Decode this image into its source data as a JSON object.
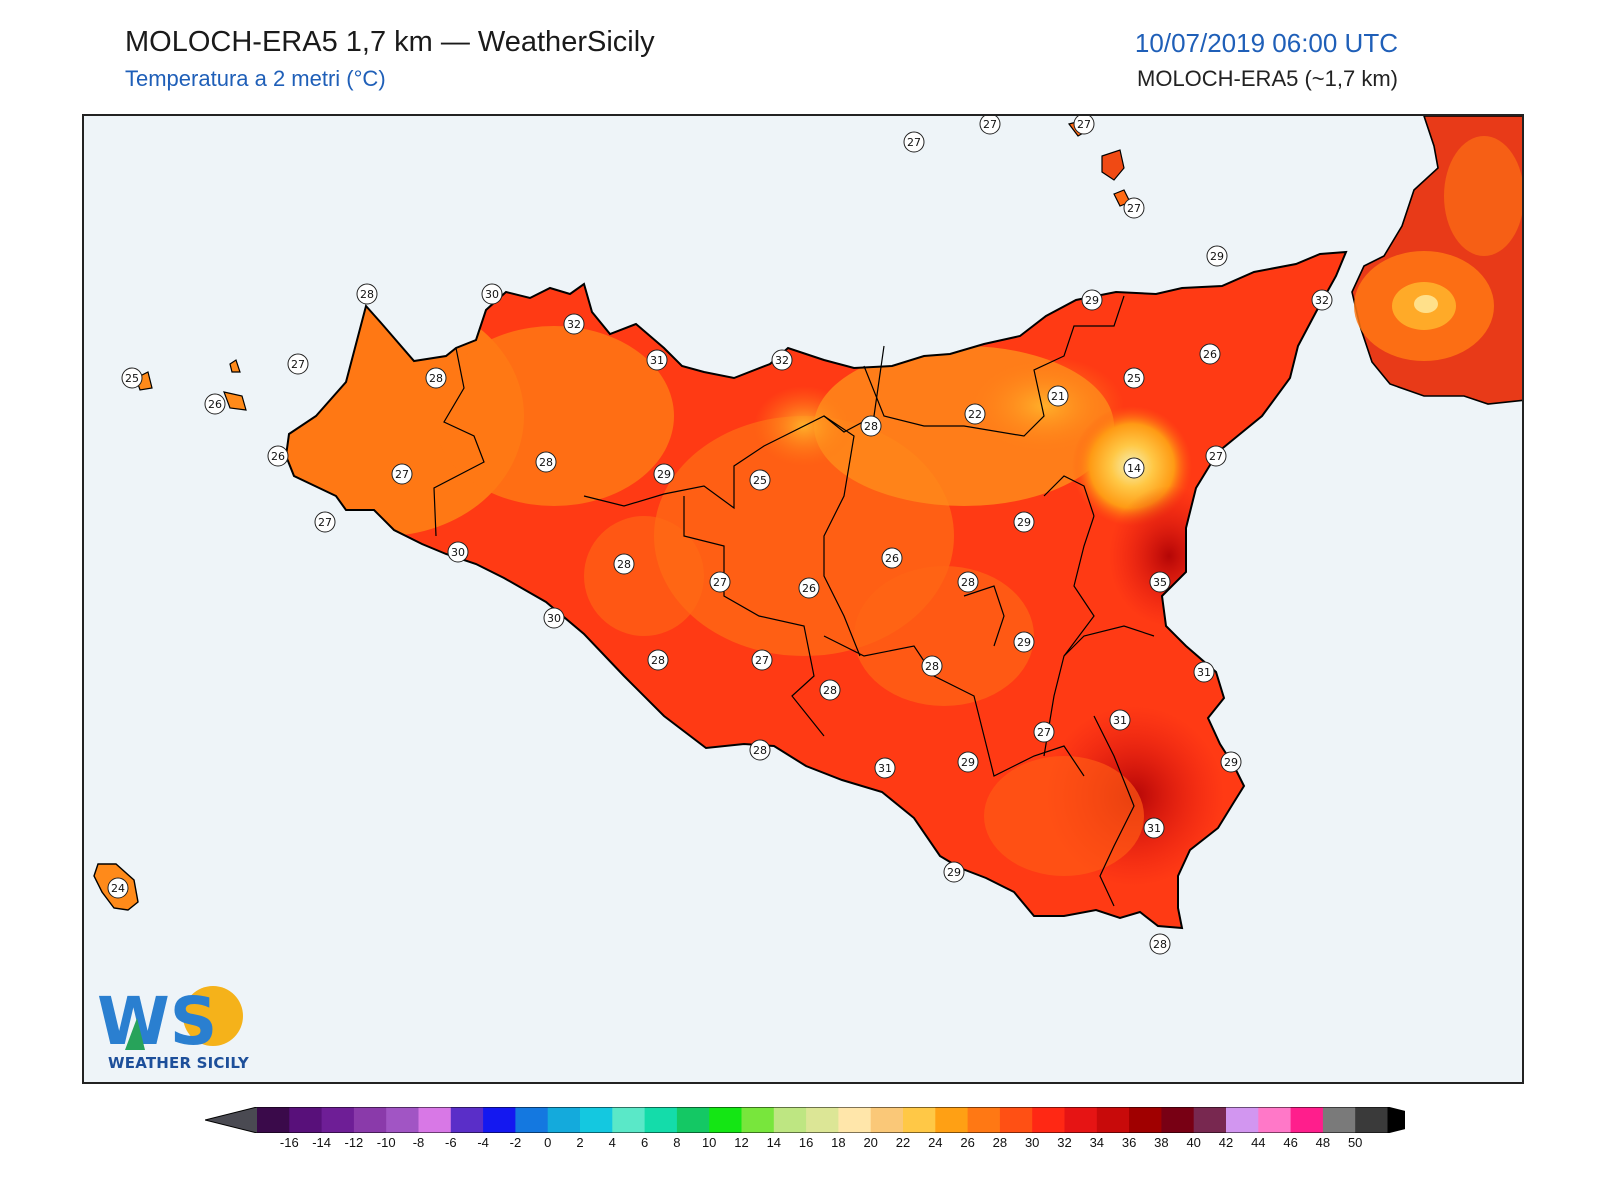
{
  "header": {
    "title": "MOLOCH-ERA5 1,7 km — WeatherSicily",
    "subtitle": "Temperatura a 2 metri (°C)",
    "datetime": "10/07/2019 06:00 UTC",
    "model": "MOLOCH-ERA5 (~1,7 km)"
  },
  "logo": {
    "letters": "WS",
    "text": "WEATHER SICILY"
  },
  "colorbar": {
    "ticks": [
      "-16",
      "-14",
      "-12",
      "-10",
      "-8",
      "-6",
      "-4",
      "-2",
      "0",
      "2",
      "4",
      "6",
      "8",
      "10",
      "12",
      "14",
      "16",
      "18",
      "20",
      "22",
      "24",
      "26",
      "28",
      "30",
      "32",
      "34",
      "36",
      "38",
      "40",
      "42",
      "44",
      "46",
      "48",
      "50"
    ],
    "colors": [
      "#3a0a4a",
      "#58107a",
      "#6e1e96",
      "#8a3aaa",
      "#a155c4",
      "#d878e6",
      "#5a2ec8",
      "#1418f0",
      "#1478e0",
      "#14aadc",
      "#14c8e0",
      "#5ae8c8",
      "#14dcaa",
      "#14c864",
      "#14e614",
      "#78e63c",
      "#bee682",
      "#dce696",
      "#ffe6aa",
      "#fac878",
      "#ffc846",
      "#ffa014",
      "#ff7814",
      "#ff5014",
      "#ff2814",
      "#e61414",
      "#c80a0a",
      "#a00000",
      "#780014",
      "#782850",
      "#d296f0",
      "#ff78c8",
      "#ff1e8c",
      "#7a7a7a",
      "#3a3a3a"
    ]
  },
  "stations": [
    {
      "v": "27"
    },
    {
      "v": "27"
    },
    {
      "v": "27"
    },
    {
      "v": "27"
    },
    {
      "v": "29"
    },
    {
      "v": "32"
    },
    {
      "v": "29"
    },
    {
      "v": "26"
    },
    {
      "v": "28"
    },
    {
      "v": "30"
    },
    {
      "v": "32"
    },
    {
      "v": "31"
    },
    {
      "v": "32"
    },
    {
      "v": "25"
    },
    {
      "v": "26"
    },
    {
      "v": "27"
    },
    {
      "v": "28"
    },
    {
      "v": "26"
    },
    {
      "v": "27"
    },
    {
      "v": "27"
    },
    {
      "v": "28"
    },
    {
      "v": "29"
    },
    {
      "v": "25"
    },
    {
      "v": "28"
    },
    {
      "v": "22"
    },
    {
      "v": "21"
    },
    {
      "v": "25"
    },
    {
      "v": "14"
    },
    {
      "v": "27"
    },
    {
      "v": "29"
    },
    {
      "v": "30"
    },
    {
      "v": "28"
    },
    {
      "v": "26"
    },
    {
      "v": "27"
    },
    {
      "v": "26"
    },
    {
      "v": "35"
    },
    {
      "v": "28"
    },
    {
      "v": "30"
    },
    {
      "v": "29"
    },
    {
      "v": "28"
    },
    {
      "v": "27"
    },
    {
      "v": "28"
    },
    {
      "v": "31"
    },
    {
      "v": "31"
    },
    {
      "v": "27"
    },
    {
      "v": "28"
    },
    {
      "v": "29"
    },
    {
      "v": "29"
    },
    {
      "v": "28"
    },
    {
      "v": "31"
    },
    {
      "v": "29"
    },
    {
      "v": "31"
    },
    {
      "v": "28"
    },
    {
      "v": "24"
    }
  ]
}
